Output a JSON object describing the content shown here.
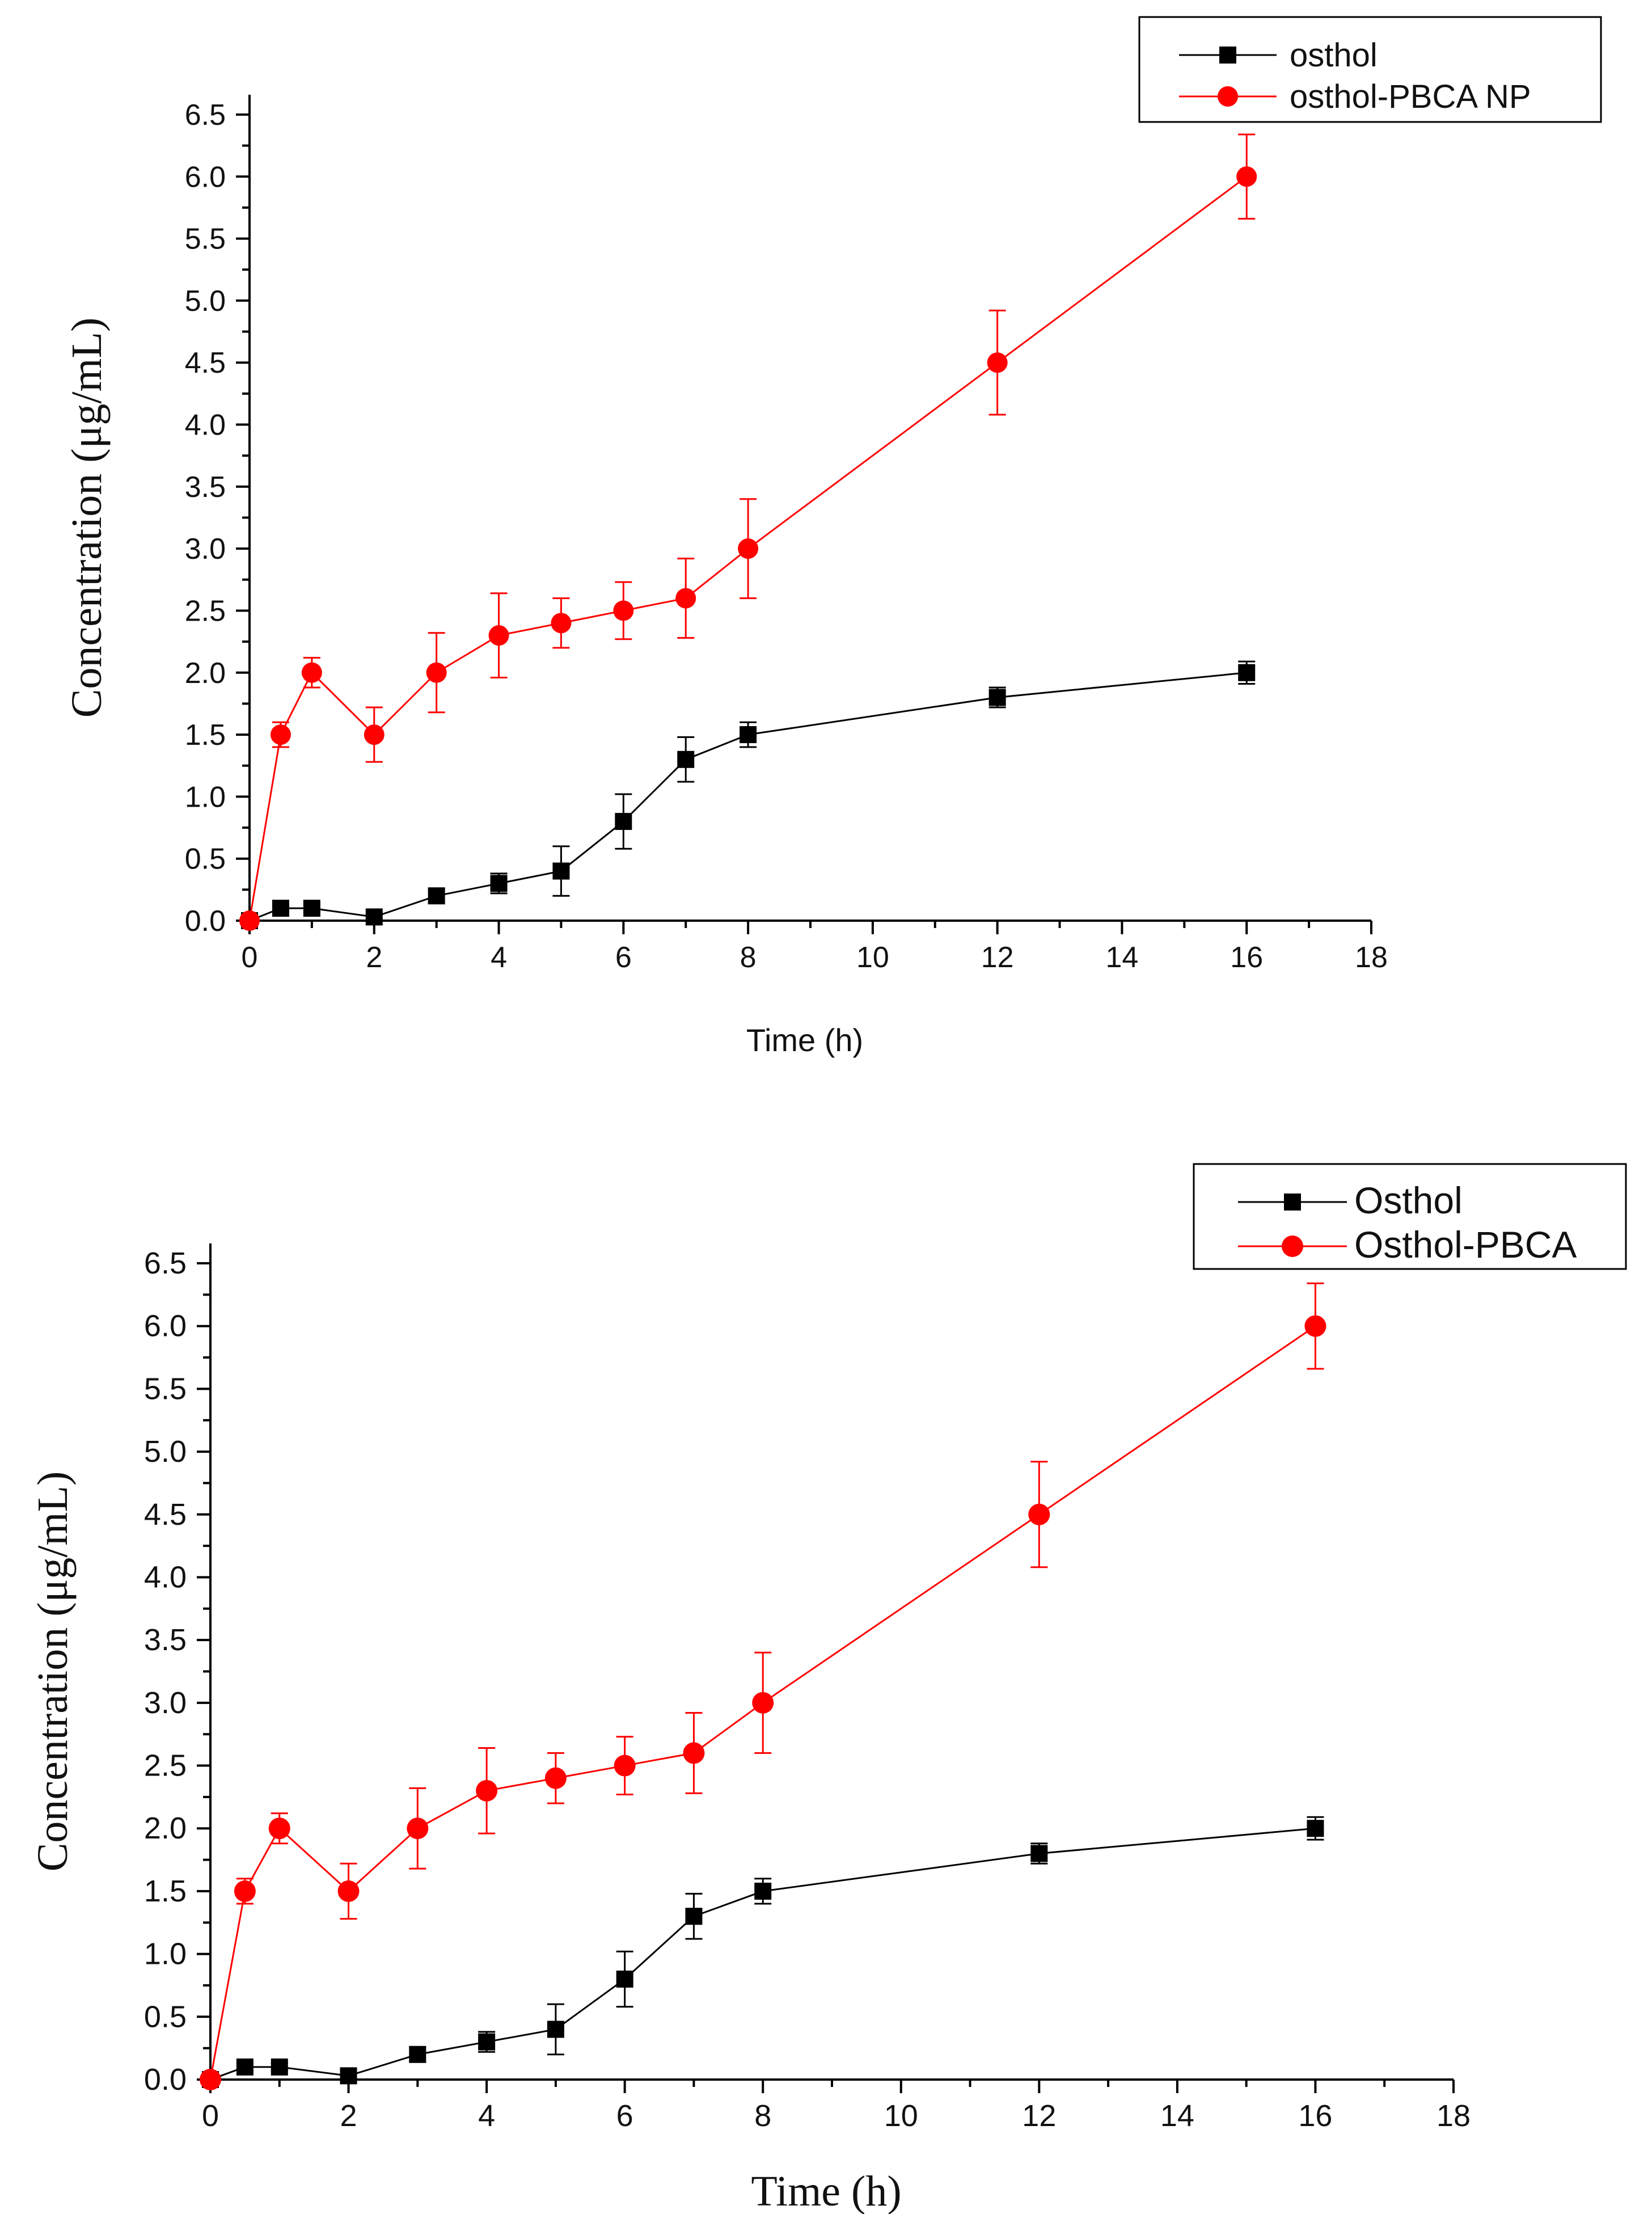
{
  "chart_data": [
    {
      "type": "line",
      "title": "",
      "xlabel": "Time (h)",
      "ylabel": "Concentration (μg/mL)",
      "xlim": [
        0,
        18
      ],
      "ylim": [
        0,
        6.5
      ],
      "xticks": [
        0,
        2,
        4,
        6,
        8,
        10,
        12,
        14,
        16,
        18
      ],
      "yticks": [
        "0.0",
        "0.5",
        "1.0",
        "1.5",
        "2.0",
        "2.5",
        "3.0",
        "3.5",
        "4.0",
        "4.5",
        "5.0",
        "5.5",
        "6.0",
        "6.5"
      ],
      "grid": false,
      "legend_position": "top-right",
      "series": [
        {
          "name": "osthol",
          "color": "#000000",
          "marker": "square",
          "x": [
            0,
            0.5,
            1,
            2,
            3,
            4,
            5,
            6,
            7,
            8,
            12,
            16
          ],
          "y": [
            0,
            0.1,
            0.1,
            0.03,
            0.2,
            0.3,
            0.4,
            0.8,
            1.3,
            1.5,
            1.8,
            2.0
          ],
          "error": [
            0,
            0.03,
            0.03,
            0.02,
            0.06,
            0.08,
            0.2,
            0.22,
            0.18,
            0.1,
            0.08,
            0.09
          ]
        },
        {
          "name": "osthol-PBCA NP",
          "color": "#ff0000",
          "marker": "circle",
          "x": [
            0,
            0.5,
            1,
            2,
            3,
            4,
            5,
            6,
            7,
            8,
            12,
            16
          ],
          "y": [
            0,
            1.5,
            2.0,
            1.5,
            2.0,
            2.3,
            2.4,
            2.5,
            2.6,
            3.0,
            4.5,
            6.0
          ],
          "error": [
            0,
            0.1,
            0.12,
            0.22,
            0.32,
            0.34,
            0.2,
            0.23,
            0.32,
            0.4,
            0.42,
            0.34
          ]
        }
      ]
    },
    {
      "type": "line",
      "title": "",
      "xlabel": "Time (h)",
      "ylabel": "Concentration (μg/mL)",
      "xlim": [
        0,
        18
      ],
      "ylim": [
        0,
        6.5
      ],
      "xticks": [
        0,
        2,
        4,
        6,
        8,
        10,
        12,
        14,
        16,
        18
      ],
      "yticks": [
        "0.0",
        "0.5",
        "1.0",
        "1.5",
        "2.0",
        "2.5",
        "3.0",
        "3.5",
        "4.0",
        "4.5",
        "5.0",
        "5.5",
        "6.0",
        "6.5"
      ],
      "grid": false,
      "legend_position": "top-right",
      "series": [
        {
          "name": "Osthol",
          "color": "#000000",
          "marker": "square",
          "x": [
            0,
            0.5,
            1,
            2,
            3,
            4,
            5,
            6,
            7,
            8,
            12,
            16
          ],
          "y": [
            0,
            0.1,
            0.1,
            0.03,
            0.2,
            0.3,
            0.4,
            0.8,
            1.3,
            1.5,
            1.8,
            2.0
          ],
          "error": [
            0,
            0.03,
            0.03,
            0.02,
            0.06,
            0.08,
            0.2,
            0.22,
            0.18,
            0.1,
            0.08,
            0.09
          ]
        },
        {
          "name": "Osthol-PBCA",
          "color": "#ff0000",
          "marker": "circle",
          "x": [
            0,
            0.5,
            1,
            2,
            3,
            4,
            5,
            6,
            7,
            8,
            12,
            16
          ],
          "y": [
            0,
            1.5,
            2.0,
            1.5,
            2.0,
            2.3,
            2.4,
            2.5,
            2.6,
            3.0,
            4.5,
            6.0
          ],
          "error": [
            0,
            0.1,
            0.12,
            0.22,
            0.32,
            0.34,
            0.2,
            0.23,
            0.32,
            0.4,
            0.42,
            0.34
          ]
        }
      ]
    }
  ]
}
